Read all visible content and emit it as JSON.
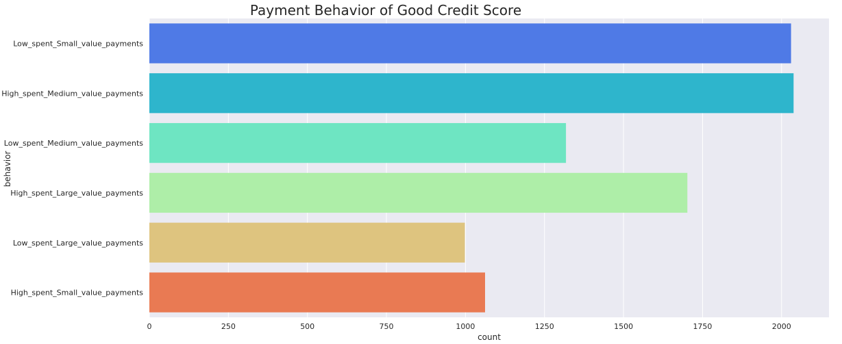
{
  "chart_data": {
    "type": "bar",
    "orientation": "horizontal",
    "title": "Payment Behavior of Good Credit Score",
    "xlabel": "count",
    "ylabel": "behavior",
    "xlim": [
      0,
      2150
    ],
    "xticks": [
      0,
      250,
      500,
      750,
      1000,
      1250,
      1500,
      1750,
      2000
    ],
    "grid": true,
    "background_color": "#eaeaf2",
    "categories": [
      "Low_spent_Small_value_payments",
      "High_spent_Medium_value_payments",
      "Low_spent_Medium_value_payments",
      "High_spent_Large_value_payments",
      "Low_spent_Large_value_payments",
      "High_spent_Small_value_payments"
    ],
    "values": [
      2030,
      2038,
      1318,
      1702,
      998,
      1062
    ],
    "colors": [
      "#4f7ae6",
      "#2eb5cc",
      "#6ee5c2",
      "#aeeea8",
      "#dec47f",
      "#e97a53"
    ]
  }
}
